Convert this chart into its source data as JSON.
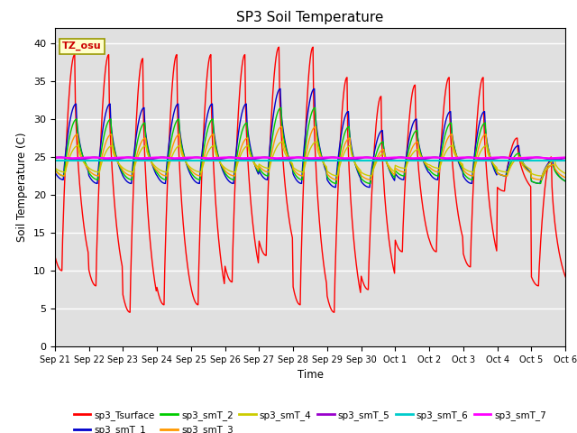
{
  "title": "SP3 Soil Temperature",
  "ylabel": "Soil Temperature (C)",
  "xlabel": "Time",
  "ylim": [
    0,
    42
  ],
  "yticks": [
    0,
    5,
    10,
    15,
    20,
    25,
    30,
    35,
    40
  ],
  "xtick_labels": [
    "Sep 21",
    "Sep 22",
    "Sep 23",
    "Sep 24",
    "Sep 25",
    "Sep 26",
    "Sep 27",
    "Sep 28",
    "Sep 29",
    "Sep 30",
    "Oct 1",
    "Oct 2",
    "Oct 3",
    "Oct 4",
    "Oct 5",
    "Oct 6"
  ],
  "annotation": "TZ_osu",
  "bg_color": "#e0e0e0",
  "legend_entries": [
    {
      "label": "sp3_Tsurface",
      "color": "#ff0000"
    },
    {
      "label": "sp3_smT_1",
      "color": "#0000cc"
    },
    {
      "label": "sp3_smT_2",
      "color": "#00cc00"
    },
    {
      "label": "sp3_smT_3",
      "color": "#ff9900"
    },
    {
      "label": "sp3_smT_4",
      "color": "#cccc00"
    },
    {
      "label": "sp3_smT_5",
      "color": "#9900cc"
    },
    {
      "label": "sp3_smT_6",
      "color": "#00cccc"
    },
    {
      "label": "sp3_smT_7",
      "color": "#ff00ff"
    }
  ]
}
